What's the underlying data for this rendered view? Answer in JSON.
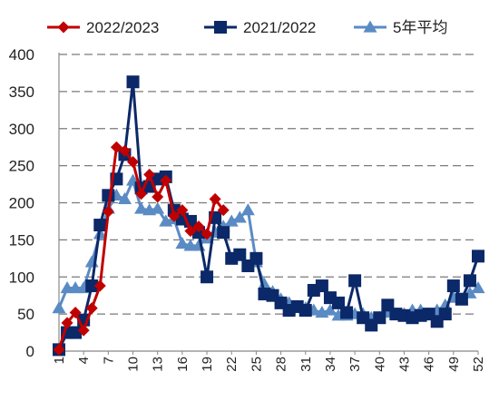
{
  "chart_data": {
    "type": "line",
    "title": "",
    "xlabel": "",
    "ylabel": "",
    "ylim": [
      0,
      400
    ],
    "xlim": [
      1,
      52
    ],
    "yticks": [
      0,
      50,
      100,
      150,
      200,
      250,
      300,
      350,
      400
    ],
    "xticks": [
      1,
      4,
      7,
      10,
      13,
      16,
      19,
      22,
      25,
      28,
      31,
      34,
      37,
      40,
      43,
      46,
      49,
      52
    ],
    "grid": "horizontal dashed",
    "legend_position": "top",
    "series": [
      {
        "name": "2022/2023",
        "color": "#c00000",
        "marker": "diamond",
        "x": [
          1,
          2,
          3,
          4,
          5,
          6,
          7,
          8,
          9,
          10,
          11,
          12,
          13,
          14,
          15,
          16,
          17,
          18,
          19,
          20,
          21
        ],
        "y": [
          2,
          38,
          52,
          28,
          58,
          88,
          188,
          275,
          270,
          255,
          212,
          238,
          208,
          230,
          182,
          190,
          162,
          168,
          158,
          205,
          190
        ]
      },
      {
        "name": "2021/2022",
        "color": "#0b2868",
        "marker": "square",
        "x": [
          1,
          2,
          3,
          4,
          5,
          6,
          7,
          8,
          9,
          10,
          11,
          12,
          13,
          14,
          15,
          16,
          17,
          18,
          19,
          20,
          21,
          22,
          23,
          24,
          25,
          26,
          27,
          28,
          29,
          30,
          31,
          32,
          33,
          34,
          35,
          36,
          37,
          38,
          39,
          40,
          41,
          42,
          43,
          44,
          45,
          46,
          47,
          48,
          49,
          50,
          51,
          52
        ],
        "y": [
          2,
          25,
          25,
          42,
          88,
          170,
          210,
          232,
          265,
          363,
          220,
          222,
          232,
          235,
          190,
          178,
          175,
          160,
          100,
          180,
          160,
          125,
          130,
          115,
          125,
          77,
          75,
          65,
          55,
          60,
          55,
          82,
          88,
          72,
          65,
          52,
          95,
          45,
          35,
          45,
          62,
          50,
          48,
          45,
          48,
          50,
          40,
          50,
          88,
          70,
          95,
          128
        ]
      },
      {
        "name": "5年平均",
        "color": "#5b8bc4",
        "marker": "triangle",
        "x": [
          1,
          2,
          3,
          4,
          5,
          6,
          7,
          8,
          9,
          10,
          11,
          12,
          13,
          14,
          15,
          16,
          17,
          18,
          19,
          20,
          21,
          22,
          23,
          24,
          25,
          26,
          27,
          28,
          29,
          30,
          31,
          32,
          33,
          34,
          35,
          36,
          37,
          38,
          39,
          40,
          41,
          42,
          43,
          44,
          45,
          46,
          47,
          48,
          49,
          50,
          51,
          52
        ],
        "y": [
          58,
          85,
          85,
          85,
          120,
          158,
          192,
          210,
          205,
          230,
          192,
          190,
          192,
          175,
          178,
          145,
          142,
          142,
          152,
          160,
          168,
          175,
          180,
          190,
          120,
          90,
          80,
          70,
          65,
          60,
          58,
          55,
          52,
          55,
          48,
          48,
          50,
          50,
          45,
          45,
          52,
          50,
          50,
          55,
          55,
          50,
          55,
          62,
          72,
          70,
          78,
          85
        ]
      }
    ]
  }
}
